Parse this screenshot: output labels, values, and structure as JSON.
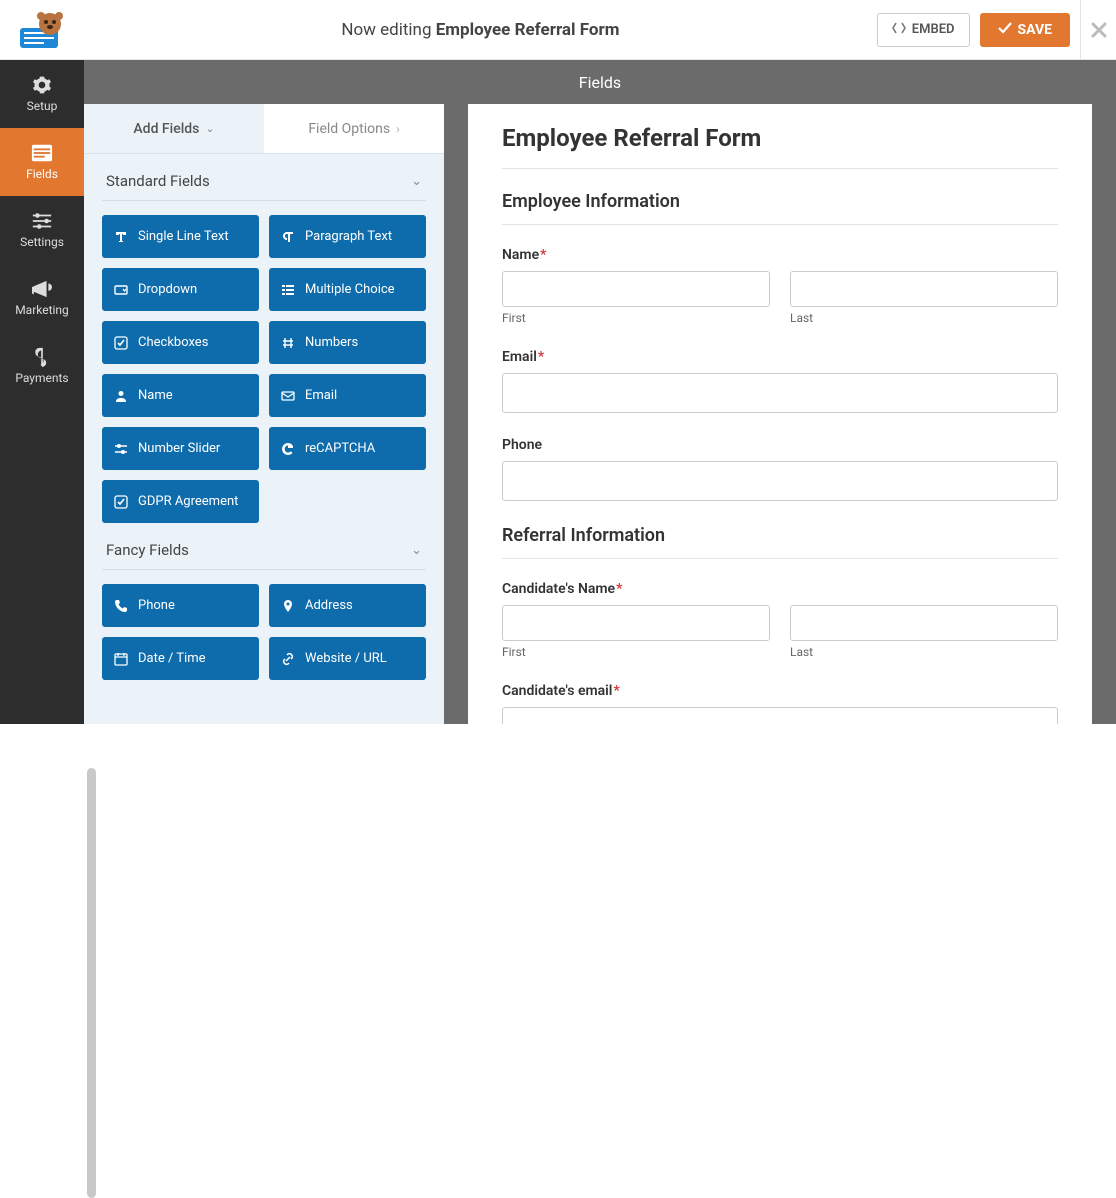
{
  "header": {
    "editing_prefix": "Now editing ",
    "form_name": "Employee Referral Form",
    "embed_label": "EMBED",
    "save_label": "SAVE"
  },
  "nav": {
    "items": [
      {
        "key": "setup",
        "label": "Setup"
      },
      {
        "key": "fields",
        "label": "Fields"
      },
      {
        "key": "settings",
        "label": "Settings"
      },
      {
        "key": "marketing",
        "label": "Marketing"
      },
      {
        "key": "payments",
        "label": "Payments"
      }
    ],
    "active": "fields"
  },
  "panel": {
    "header": "Fields",
    "tabs": {
      "add_fields": "Add Fields",
      "field_options": "Field Options"
    },
    "sections": [
      {
        "title": "Standard Fields",
        "open": true,
        "fields": [
          {
            "label": "Single Line Text",
            "icon": "text"
          },
          {
            "label": "Paragraph Text",
            "icon": "paragraph"
          },
          {
            "label": "Dropdown",
            "icon": "dropdown"
          },
          {
            "label": "Multiple Choice",
            "icon": "list"
          },
          {
            "label": "Checkboxes",
            "icon": "check"
          },
          {
            "label": "Numbers",
            "icon": "hash"
          },
          {
            "label": "Name",
            "icon": "user"
          },
          {
            "label": "Email",
            "icon": "mail"
          },
          {
            "label": "Number Slider",
            "icon": "slider"
          },
          {
            "label": "reCAPTCHA",
            "icon": "google"
          },
          {
            "label": "GDPR Agreement",
            "icon": "check"
          }
        ]
      },
      {
        "title": "Fancy Fields",
        "open": true,
        "fields": [
          {
            "label": "Phone",
            "icon": "phone"
          },
          {
            "label": "Address",
            "icon": "pin"
          },
          {
            "label": "Date / Time",
            "icon": "calendar"
          },
          {
            "label": "Website / URL",
            "icon": "link"
          }
        ]
      }
    ]
  },
  "preview": {
    "title": "Employee Referral Form",
    "sections": [
      {
        "title": "Employee Information",
        "fields": [
          {
            "type": "name",
            "label": "Name",
            "required": true,
            "sub1": "First",
            "sub2": "Last"
          },
          {
            "type": "text",
            "label": "Email",
            "required": true
          },
          {
            "type": "text",
            "label": "Phone",
            "required": false
          }
        ]
      },
      {
        "title": "Referral Information",
        "fields": [
          {
            "type": "name",
            "label": "Candidate's Name",
            "required": true,
            "sub1": "First",
            "sub2": "Last"
          },
          {
            "type": "text",
            "label": "Candidate's email",
            "required": true
          }
        ]
      }
    ]
  },
  "colors": {
    "accent": "#e27730",
    "field_btn": "#0e6cad",
    "dark_nav": "#2d2d2d",
    "panel_bg": "#ebf3f9",
    "header_bar": "#6b6b6b"
  }
}
